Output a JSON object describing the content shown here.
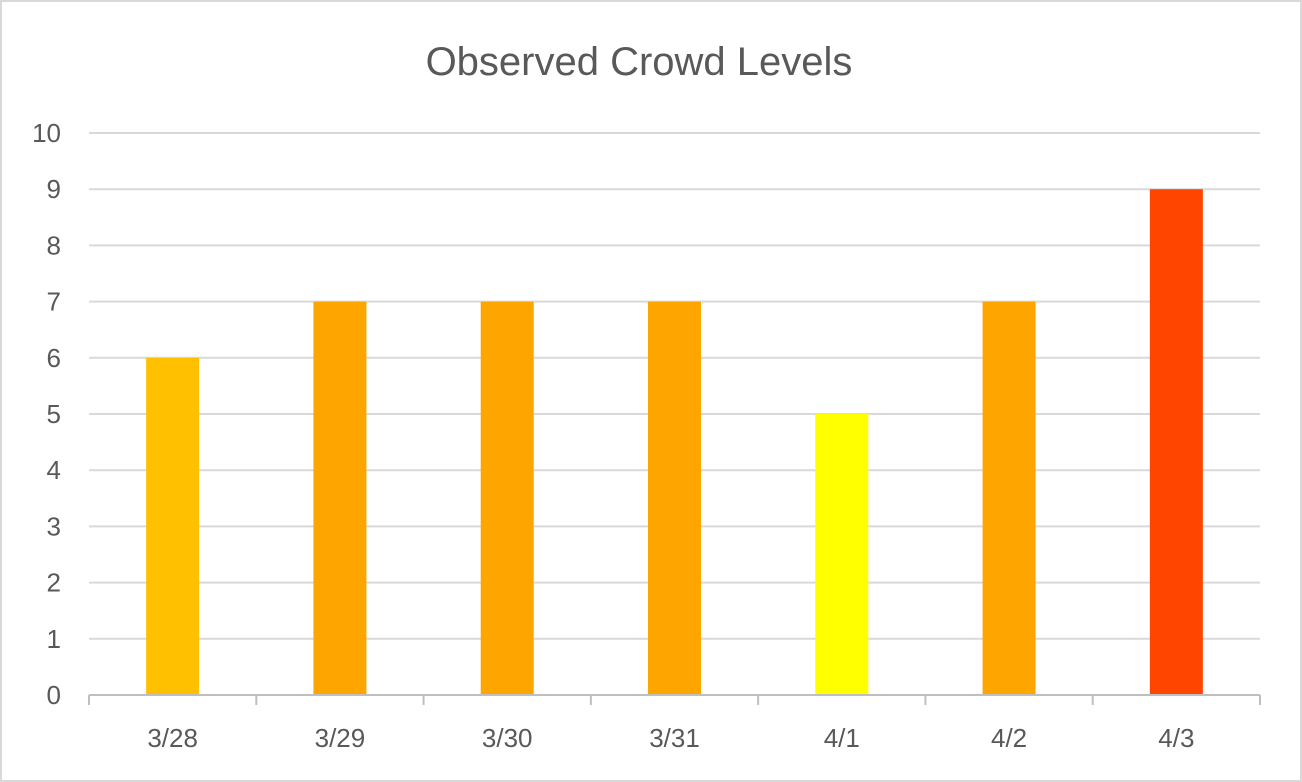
{
  "chart_data": {
    "type": "bar",
    "title": "Observed Crowd Levels",
    "xlabel": "",
    "ylabel": "",
    "categories": [
      "3/28",
      "3/29",
      "3/30",
      "3/31",
      "4/1",
      "4/2",
      "4/3"
    ],
    "values": [
      6,
      7,
      7,
      7,
      5,
      7,
      9
    ],
    "bar_colors": [
      "#FFC000",
      "#FFA500",
      "#FFA500",
      "#FFA500",
      "#FFFF00",
      "#FFA500",
      "#FF4500"
    ],
    "ylim": [
      0,
      10
    ],
    "yticks": [
      "0",
      "1",
      "2",
      "3",
      "4",
      "5",
      "6",
      "7",
      "8",
      "9",
      "10"
    ],
    "grid": true,
    "legend": "none"
  },
  "colors": {
    "gridline": "#d9d9d9",
    "axis": "#bfbfbf",
    "text": "#595959",
    "border": "#d9d9d9"
  }
}
